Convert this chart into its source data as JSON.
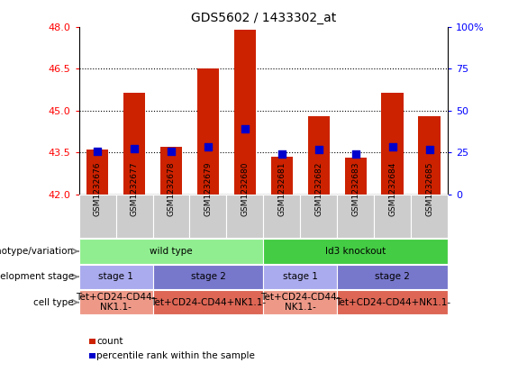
{
  "title": "GDS5602 / 1433302_at",
  "samples": [
    "GSM1232676",
    "GSM1232677",
    "GSM1232678",
    "GSM1232679",
    "GSM1232680",
    "GSM1232681",
    "GSM1232682",
    "GSM1232683",
    "GSM1232684",
    "GSM1232685"
  ],
  "bar_bottoms": [
    42,
    42,
    42,
    42,
    42,
    42,
    42,
    42,
    42,
    42
  ],
  "bar_tops": [
    43.6,
    45.65,
    43.7,
    46.5,
    47.9,
    43.35,
    44.8,
    43.3,
    45.65,
    44.8
  ],
  "percentile_values": [
    43.55,
    43.65,
    43.55,
    43.7,
    44.35,
    43.45,
    43.6,
    43.45,
    43.7,
    43.6
  ],
  "ylim": [
    42,
    48
  ],
  "y_ticks": [
    42,
    43.5,
    45,
    46.5,
    48
  ],
  "right_yticks": [
    0,
    25,
    50,
    75,
    100
  ],
  "right_ylim": [
    0,
    100
  ],
  "bar_color": "#cc2200",
  "dot_color": "#0000cc",
  "genotype_groups": [
    {
      "label": "wild type",
      "start": 0,
      "end": 5,
      "color": "#90ee90"
    },
    {
      "label": "Id3 knockout",
      "start": 5,
      "end": 10,
      "color": "#44cc44"
    }
  ],
  "stage_groups": [
    {
      "label": "stage 1",
      "start": 0,
      "end": 2,
      "color": "#aaaaee"
    },
    {
      "label": "stage 2",
      "start": 2,
      "end": 5,
      "color": "#7777cc"
    },
    {
      "label": "stage 1",
      "start": 5,
      "end": 7,
      "color": "#aaaaee"
    },
    {
      "label": "stage 2",
      "start": 7,
      "end": 10,
      "color": "#7777cc"
    }
  ],
  "celltype_groups": [
    {
      "label": "Tet+CD24-CD44-\nNK1.1-",
      "start": 0,
      "end": 2,
      "color": "#ee9988"
    },
    {
      "label": "Tet+CD24-CD44+NK1.1-",
      "start": 2,
      "end": 5,
      "color": "#dd6655"
    },
    {
      "label": "Tet+CD24-CD44-\nNK1.1-",
      "start": 5,
      "end": 7,
      "color": "#ee9988"
    },
    {
      "label": "Tet+CD24-CD44+NK1.1-",
      "start": 7,
      "end": 10,
      "color": "#dd6655"
    }
  ],
  "row_labels": [
    "genotype/variation",
    "development stage",
    "cell type"
  ],
  "legend_items": [
    {
      "label": "count",
      "color": "#cc2200"
    },
    {
      "label": "percentile rank within the sample",
      "color": "#0000cc"
    }
  ]
}
